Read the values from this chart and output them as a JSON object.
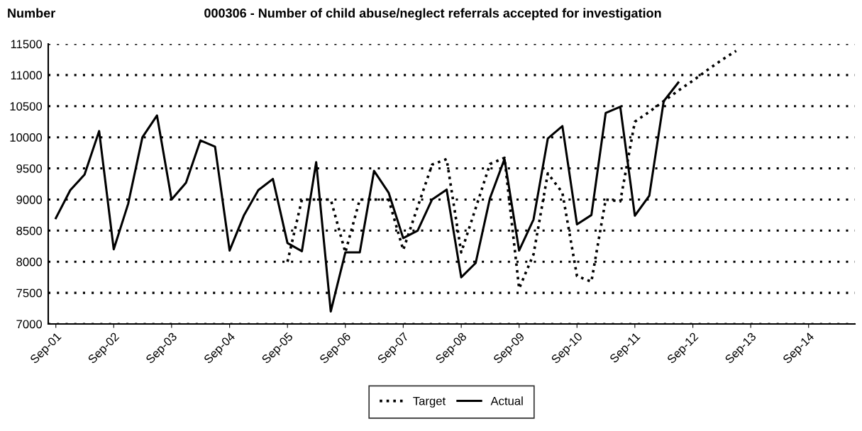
{
  "chart_data": {
    "type": "line",
    "title": "000306 - Number of child abuse/neglect referrals accepted for investigation",
    "ylabel": "Number",
    "x": [
      "2001-09",
      "2001-12",
      "2002-03",
      "2002-06",
      "2002-09",
      "2002-12",
      "2003-03",
      "2003-06",
      "2003-09",
      "2003-12",
      "2004-03",
      "2004-06",
      "2004-09",
      "2004-12",
      "2005-03",
      "2005-06",
      "2005-09",
      "2005-12",
      "2006-03",
      "2006-06",
      "2006-09",
      "2006-12",
      "2007-03",
      "2007-06",
      "2007-09",
      "2007-12",
      "2008-03",
      "2008-06",
      "2008-09",
      "2008-12",
      "2009-03",
      "2009-06",
      "2009-09",
      "2009-12",
      "2010-03",
      "2010-06",
      "2010-09",
      "2010-12",
      "2011-03",
      "2011-06",
      "2011-09",
      "2011-12",
      "2012-03",
      "2012-06",
      "2012-09",
      "2012-12",
      "2013-03",
      "2013-06"
    ],
    "series": [
      {
        "name": "Target",
        "color": "#000000",
        "line_style": "dotted",
        "values": [
          null,
          null,
          null,
          null,
          null,
          null,
          null,
          null,
          null,
          null,
          null,
          null,
          null,
          null,
          null,
          null,
          8000,
          9000,
          9000,
          9000,
          8150,
          9000,
          9000,
          9000,
          8190,
          8880,
          9560,
          9650,
          8150,
          8860,
          9570,
          9670,
          7570,
          8120,
          9420,
          9110,
          7770,
          7680,
          9000,
          8970,
          10250,
          10410,
          10580,
          10750,
          10910,
          11080,
          11240,
          11390
        ]
      },
      {
        "name": "Actual",
        "color": "#000000",
        "line_style": "solid",
        "values": [
          8700,
          9150,
          9400,
          10100,
          8200,
          8930,
          10000,
          10350,
          9000,
          9270,
          9950,
          9850,
          8180,
          8750,
          9150,
          9330,
          8300,
          8170,
          9600,
          7200,
          8150,
          8150,
          9460,
          9110,
          8380,
          8500,
          9000,
          9160,
          7750,
          7980,
          9020,
          9650,
          8180,
          8680,
          9980,
          10180,
          8600,
          8750,
          10390,
          10490,
          8740,
          9060,
          10580,
          10880,
          null,
          null,
          null,
          null
        ]
      }
    ],
    "xlim": [
      "2001-07-15",
      "2015-06-20"
    ],
    "xticks": [
      {
        "value": "2001-09",
        "label": "Sep-01"
      },
      {
        "value": "2002-09",
        "label": "Sep-02"
      },
      {
        "value": "2003-09",
        "label": "Sep-03"
      },
      {
        "value": "2004-09",
        "label": "Sep-04"
      },
      {
        "value": "2005-09",
        "label": "Sep-05"
      },
      {
        "value": "2006-09",
        "label": "Sep-06"
      },
      {
        "value": "2007-09",
        "label": "Sep-07"
      },
      {
        "value": "2008-09",
        "label": "Sep-08"
      },
      {
        "value": "2009-09",
        "label": "Sep-09"
      },
      {
        "value": "2010-09",
        "label": "Sep-10"
      },
      {
        "value": "2011-09",
        "label": "Sep-11"
      },
      {
        "value": "2012-09",
        "label": "Sep-12"
      },
      {
        "value": "2013-09",
        "label": "Sep-13"
      },
      {
        "value": "2014-09",
        "label": "Sep-14"
      }
    ],
    "ylim": [
      7000,
      11500
    ],
    "yticks": [
      7000,
      7500,
      8000,
      8500,
      9000,
      9500,
      10000,
      10500,
      11000,
      11500
    ],
    "grid": "y",
    "legend": "bottom",
    "marker": "none"
  }
}
